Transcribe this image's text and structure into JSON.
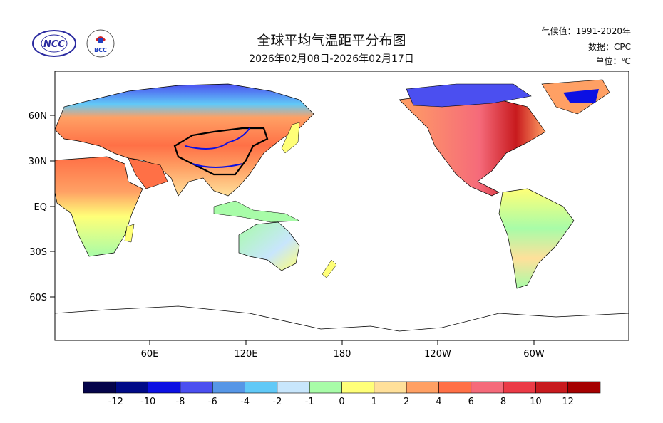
{
  "header": {
    "title": "全球平均气温距平分布图",
    "subtitle": "2026年02月08日-2026年02月17日",
    "climatology": "气候值：1991-2020年",
    "data_source": "数据：CPC",
    "unit": "单位：℃"
  },
  "logos": {
    "left": "NCC",
    "right": "BCC"
  },
  "map": {
    "lat_labels": [
      "60N",
      "30N",
      "EQ",
      "30S",
      "60S"
    ],
    "lon_labels": [
      "60E",
      "120E",
      "180",
      "120W",
      "60W"
    ]
  },
  "colorbar": {
    "colors": [
      "#05044a",
      "#000a87",
      "#0c10e3",
      "#4b4ff0",
      "#5696e6",
      "#61c9f7",
      "#c8e6fc",
      "#a8fca8",
      "#ffff78",
      "#ffe09a",
      "#ffa064",
      "#ff7046",
      "#f56a7a",
      "#eb3a46",
      "#c81a1e",
      "#a50000"
    ],
    "labels": [
      "-12",
      "-10",
      "-8",
      "-6",
      "-4",
      "-2",
      "-1",
      "0",
      "1",
      "2",
      "4",
      "6",
      "8",
      "10",
      "12"
    ]
  }
}
